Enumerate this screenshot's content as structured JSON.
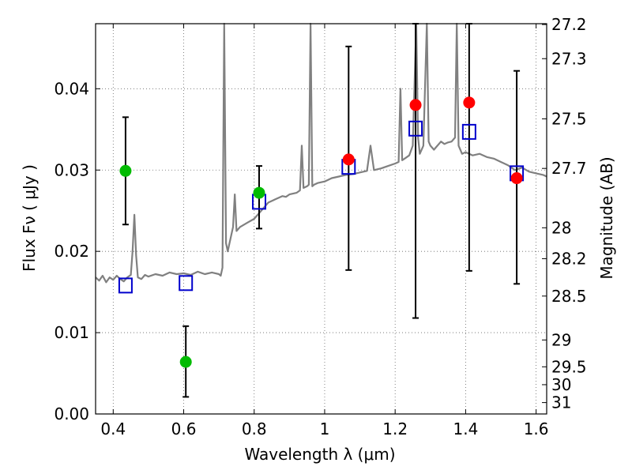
{
  "chart_data": {
    "type": "scatter",
    "xlabel": "Wavelength  λ (μm)",
    "ylabel": "Flux  Fν  ( μJy )",
    "y2label": "Magnitude (AB)",
    "xlim": [
      0.35,
      1.63
    ],
    "ylim": [
      0.0,
      0.048
    ],
    "x_ticks": [
      0.4,
      0.6,
      0.8,
      1.0,
      1.2,
      1.4,
      1.6
    ],
    "x_tick_labels": [
      "0.4",
      "0.6",
      "0.8",
      "1",
      "1.2",
      "1.4",
      "1.6"
    ],
    "y_ticks": [
      0.0,
      0.01,
      0.02,
      0.03,
      0.04
    ],
    "y_tick_labels": [
      "0.00",
      "0.01",
      "0.02",
      "0.03",
      "0.04"
    ],
    "mag_ticks": [
      {
        "label": "27.2",
        "flux": 0.0479
      },
      {
        "label": "27.3",
        "flux": 0.0437
      },
      {
        "label": "27.5",
        "flux": 0.0363
      },
      {
        "label": "27.7",
        "flux": 0.0302
      },
      {
        "label": "28",
        "flux": 0.0229
      },
      {
        "label": "28.2",
        "flux": 0.0191
      },
      {
        "label": "28.5",
        "flux": 0.0145
      },
      {
        "label": "29",
        "flux": 0.0091
      },
      {
        "label": "29.5",
        "flux": 0.0058
      },
      {
        "label": "30",
        "flux": 0.0036
      },
      {
        "label": "31",
        "flux": 0.0014
      }
    ],
    "grid": true,
    "colors": {
      "spectrum": "#808080",
      "green": "#00bb00",
      "red": "#ff0000",
      "model_box": "#0000cc",
      "errorbar": "#000000"
    },
    "spectrum": [
      [
        0.35,
        0.0168
      ],
      [
        0.36,
        0.0164
      ],
      [
        0.37,
        0.017
      ],
      [
        0.38,
        0.0162
      ],
      [
        0.39,
        0.0168
      ],
      [
        0.4,
        0.0165
      ],
      [
        0.41,
        0.017
      ],
      [
        0.42,
        0.0166
      ],
      [
        0.43,
        0.0163
      ],
      [
        0.44,
        0.0168
      ],
      [
        0.45,
        0.0171
      ],
      [
        0.455,
        0.02
      ],
      [
        0.46,
        0.0245
      ],
      [
        0.465,
        0.0195
      ],
      [
        0.47,
        0.0168
      ],
      [
        0.48,
        0.0166
      ],
      [
        0.49,
        0.0171
      ],
      [
        0.5,
        0.0169
      ],
      [
        0.52,
        0.0172
      ],
      [
        0.54,
        0.017
      ],
      [
        0.56,
        0.0174
      ],
      [
        0.58,
        0.0172
      ],
      [
        0.6,
        0.0173
      ],
      [
        0.62,
        0.0171
      ],
      [
        0.64,
        0.0175
      ],
      [
        0.66,
        0.0172
      ],
      [
        0.68,
        0.0174
      ],
      [
        0.7,
        0.0172
      ],
      [
        0.705,
        0.017
      ],
      [
        0.71,
        0.018
      ],
      [
        0.715,
        0.048
      ],
      [
        0.72,
        0.021
      ],
      [
        0.725,
        0.02
      ],
      [
        0.73,
        0.021
      ],
      [
        0.74,
        0.023
      ],
      [
        0.745,
        0.027
      ],
      [
        0.75,
        0.0225
      ],
      [
        0.76,
        0.023
      ],
      [
        0.78,
        0.0235
      ],
      [
        0.8,
        0.024
      ],
      [
        0.81,
        0.0245
      ],
      [
        0.82,
        0.025
      ],
      [
        0.83,
        0.0255
      ],
      [
        0.84,
        0.026
      ],
      [
        0.85,
        0.0262
      ],
      [
        0.86,
        0.0264
      ],
      [
        0.87,
        0.0266
      ],
      [
        0.88,
        0.0268
      ],
      [
        0.89,
        0.0267
      ],
      [
        0.9,
        0.027
      ],
      [
        0.92,
        0.0272
      ],
      [
        0.93,
        0.0275
      ],
      [
        0.935,
        0.033
      ],
      [
        0.94,
        0.0278
      ],
      [
        0.95,
        0.028
      ],
      [
        0.955,
        0.0282
      ],
      [
        0.96,
        0.048
      ],
      [
        0.965,
        0.028
      ],
      [
        0.97,
        0.0282
      ],
      [
        0.98,
        0.0284
      ],
      [
        1.0,
        0.0286
      ],
      [
        1.02,
        0.029
      ],
      [
        1.04,
        0.0292
      ],
      [
        1.06,
        0.0294
      ],
      [
        1.08,
        0.0295
      ],
      [
        1.1,
        0.0297
      ],
      [
        1.12,
        0.0299
      ],
      [
        1.13,
        0.033
      ],
      [
        1.14,
        0.03
      ],
      [
        1.16,
        0.0302
      ],
      [
        1.18,
        0.0305
      ],
      [
        1.2,
        0.0308
      ],
      [
        1.21,
        0.031
      ],
      [
        1.215,
        0.04
      ],
      [
        1.22,
        0.0312
      ],
      [
        1.23,
        0.0315
      ],
      [
        1.24,
        0.0318
      ],
      [
        1.25,
        0.033
      ],
      [
        1.26,
        0.048
      ],
      [
        1.265,
        0.034
      ],
      [
        1.27,
        0.032
      ],
      [
        1.28,
        0.033
      ],
      [
        1.29,
        0.048
      ],
      [
        1.295,
        0.0335
      ],
      [
        1.3,
        0.033
      ],
      [
        1.31,
        0.0325
      ],
      [
        1.32,
        0.033
      ],
      [
        1.33,
        0.0335
      ],
      [
        1.34,
        0.0332
      ],
      [
        1.35,
        0.0334
      ],
      [
        1.36,
        0.0335
      ],
      [
        1.37,
        0.034
      ],
      [
        1.375,
        0.048
      ],
      [
        1.38,
        0.033
      ],
      [
        1.39,
        0.032
      ],
      [
        1.4,
        0.0322
      ],
      [
        1.42,
        0.0318
      ],
      [
        1.44,
        0.032
      ],
      [
        1.46,
        0.0316
      ],
      [
        1.48,
        0.0314
      ],
      [
        1.5,
        0.031
      ],
      [
        1.52,
        0.0306
      ],
      [
        1.54,
        0.03
      ],
      [
        1.56,
        0.0303
      ],
      [
        1.58,
        0.0298
      ],
      [
        1.6,
        0.0296
      ],
      [
        1.62,
        0.0294
      ],
      [
        1.63,
        0.0292
      ]
    ],
    "green_points": [
      {
        "x": 0.435,
        "y": 0.0299,
        "err_low": 0.0233,
        "err_high": 0.0365
      },
      {
        "x": 0.606,
        "y": 0.0064,
        "err_low": 0.0021,
        "err_high": 0.0108
      },
      {
        "x": 0.814,
        "y": 0.0272,
        "err_low": 0.0228,
        "err_high": 0.0305
      }
    ],
    "red_points": [
      {
        "x": 1.068,
        "y": 0.0313,
        "err_low": 0.0177,
        "err_high": 0.0452
      },
      {
        "x": 1.258,
        "y": 0.038,
        "err_low": 0.0118,
        "err_high": 0.048
      },
      {
        "x": 1.41,
        "y": 0.0383,
        "err_low": 0.0176,
        "err_high": 0.048
      },
      {
        "x": 1.545,
        "y": 0.029,
        "err_low": 0.016,
        "err_high": 0.0422
      }
    ],
    "model_points": [
      {
        "x": 0.435,
        "y": 0.0158
      },
      {
        "x": 0.606,
        "y": 0.0161
      },
      {
        "x": 0.814,
        "y": 0.0261
      },
      {
        "x": 1.068,
        "y": 0.0304
      },
      {
        "x": 1.258,
        "y": 0.0351
      },
      {
        "x": 1.41,
        "y": 0.0347
      },
      {
        "x": 1.545,
        "y": 0.0296
      }
    ]
  }
}
